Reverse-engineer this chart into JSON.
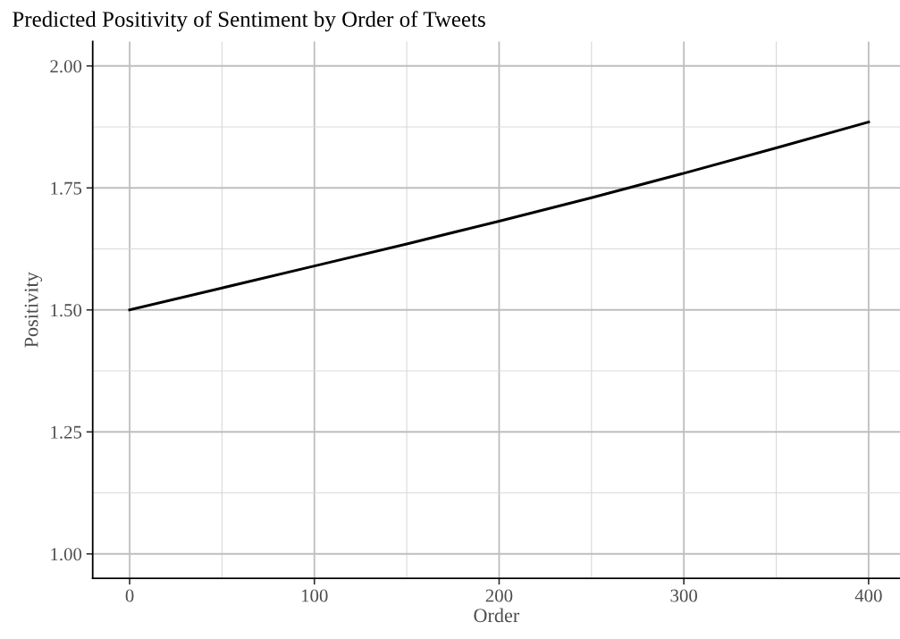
{
  "chart_data": {
    "type": "line",
    "title": "Predicted Positivity of Sentiment by Order of Tweets",
    "xlabel": "Order",
    "ylabel": "Positivity",
    "x": [
      0,
      50,
      100,
      150,
      200,
      250,
      300,
      350,
      400
    ],
    "series": [
      {
        "color": "#000000",
        "values": [
          1.5,
          1.545,
          1.59,
          1.635,
          1.682,
          1.73,
          1.78,
          1.832,
          1.885
        ]
      }
    ],
    "xlim": [
      -20,
      417
    ],
    "ylim": [
      0.95,
      2.05
    ],
    "xticks": [
      0,
      100,
      200,
      300,
      400
    ],
    "yticks": [
      {
        "value": 1.0,
        "label": "1.00"
      },
      {
        "value": 1.25,
        "label": "1.25"
      },
      {
        "value": 1.5,
        "label": "1.50"
      },
      {
        "value": 1.75,
        "label": "1.75"
      },
      {
        "value": 2.0,
        "label": "2.00"
      }
    ],
    "grid": true,
    "line_style": "solid",
    "marker": "none"
  }
}
